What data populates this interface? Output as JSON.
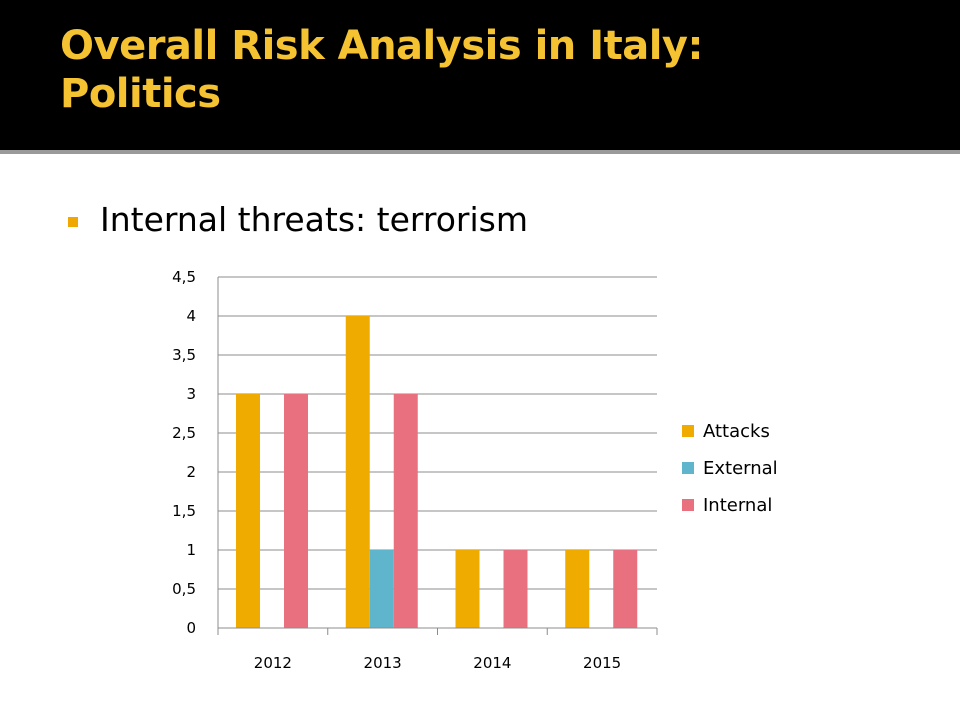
{
  "slide": {
    "title_line1": "Overall Risk Analysis in Italy:",
    "title_line2": "Politics",
    "bullet": "Internal threats: terrorism"
  },
  "colors": {
    "title": "#f5c232",
    "bullet": "#f0a800",
    "attacks": "#f0ab00",
    "external": "#5fb6cc",
    "internal": "#e8707f"
  },
  "chart_data": {
    "type": "bar",
    "categories": [
      "2012",
      "2013",
      "2014",
      "2015"
    ],
    "series": [
      {
        "name": "Attacks",
        "values": [
          3,
          4,
          1,
          1
        ],
        "color": "#f0ab00"
      },
      {
        "name": "External",
        "values": [
          0,
          1,
          0,
          0
        ],
        "color": "#5fb6cc"
      },
      {
        "name": "Internal",
        "values": [
          3,
          3,
          1,
          1
        ],
        "color": "#e8707f"
      }
    ],
    "y_ticks": [
      "0",
      "0,5",
      "1",
      "1,5",
      "2",
      "2,5",
      "3",
      "3,5",
      "4",
      "4,5"
    ],
    "ylim": [
      0,
      4.5
    ],
    "grid": true,
    "legend": "right",
    "title": "",
    "xlabel": "",
    "ylabel": ""
  }
}
